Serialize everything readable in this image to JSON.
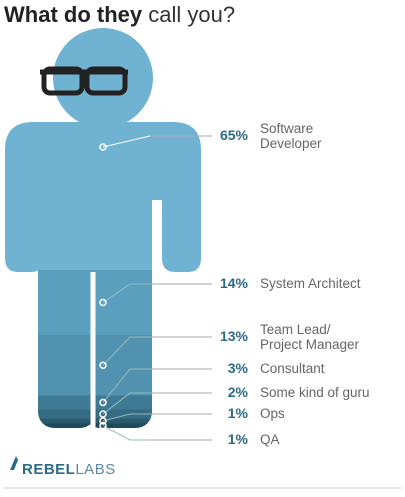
{
  "chart_data": {
    "type": "pictorial",
    "title_bold": "What do they",
    "title_light": "call you?",
    "categories": [
      "Software\nDeveloper",
      "System Architect",
      "Team Lead/\nProject Manager",
      "Consultant",
      "Some kind of guru",
      "Ops",
      "QA"
    ],
    "values": [
      65,
      14,
      13,
      3,
      2,
      1,
      1
    ],
    "value_labels": [
      "65%",
      "14%",
      "13%",
      "3%",
      "2%",
      "1%",
      "1%"
    ],
    "colors": [
      "#6fb2d2",
      "#5b9fbe",
      "#5092b0",
      "#3f7a94",
      "#356b83",
      "#2a5a6e",
      "#1f4a5b"
    ],
    "logo": [
      "REBEL",
      "LABS"
    ]
  }
}
